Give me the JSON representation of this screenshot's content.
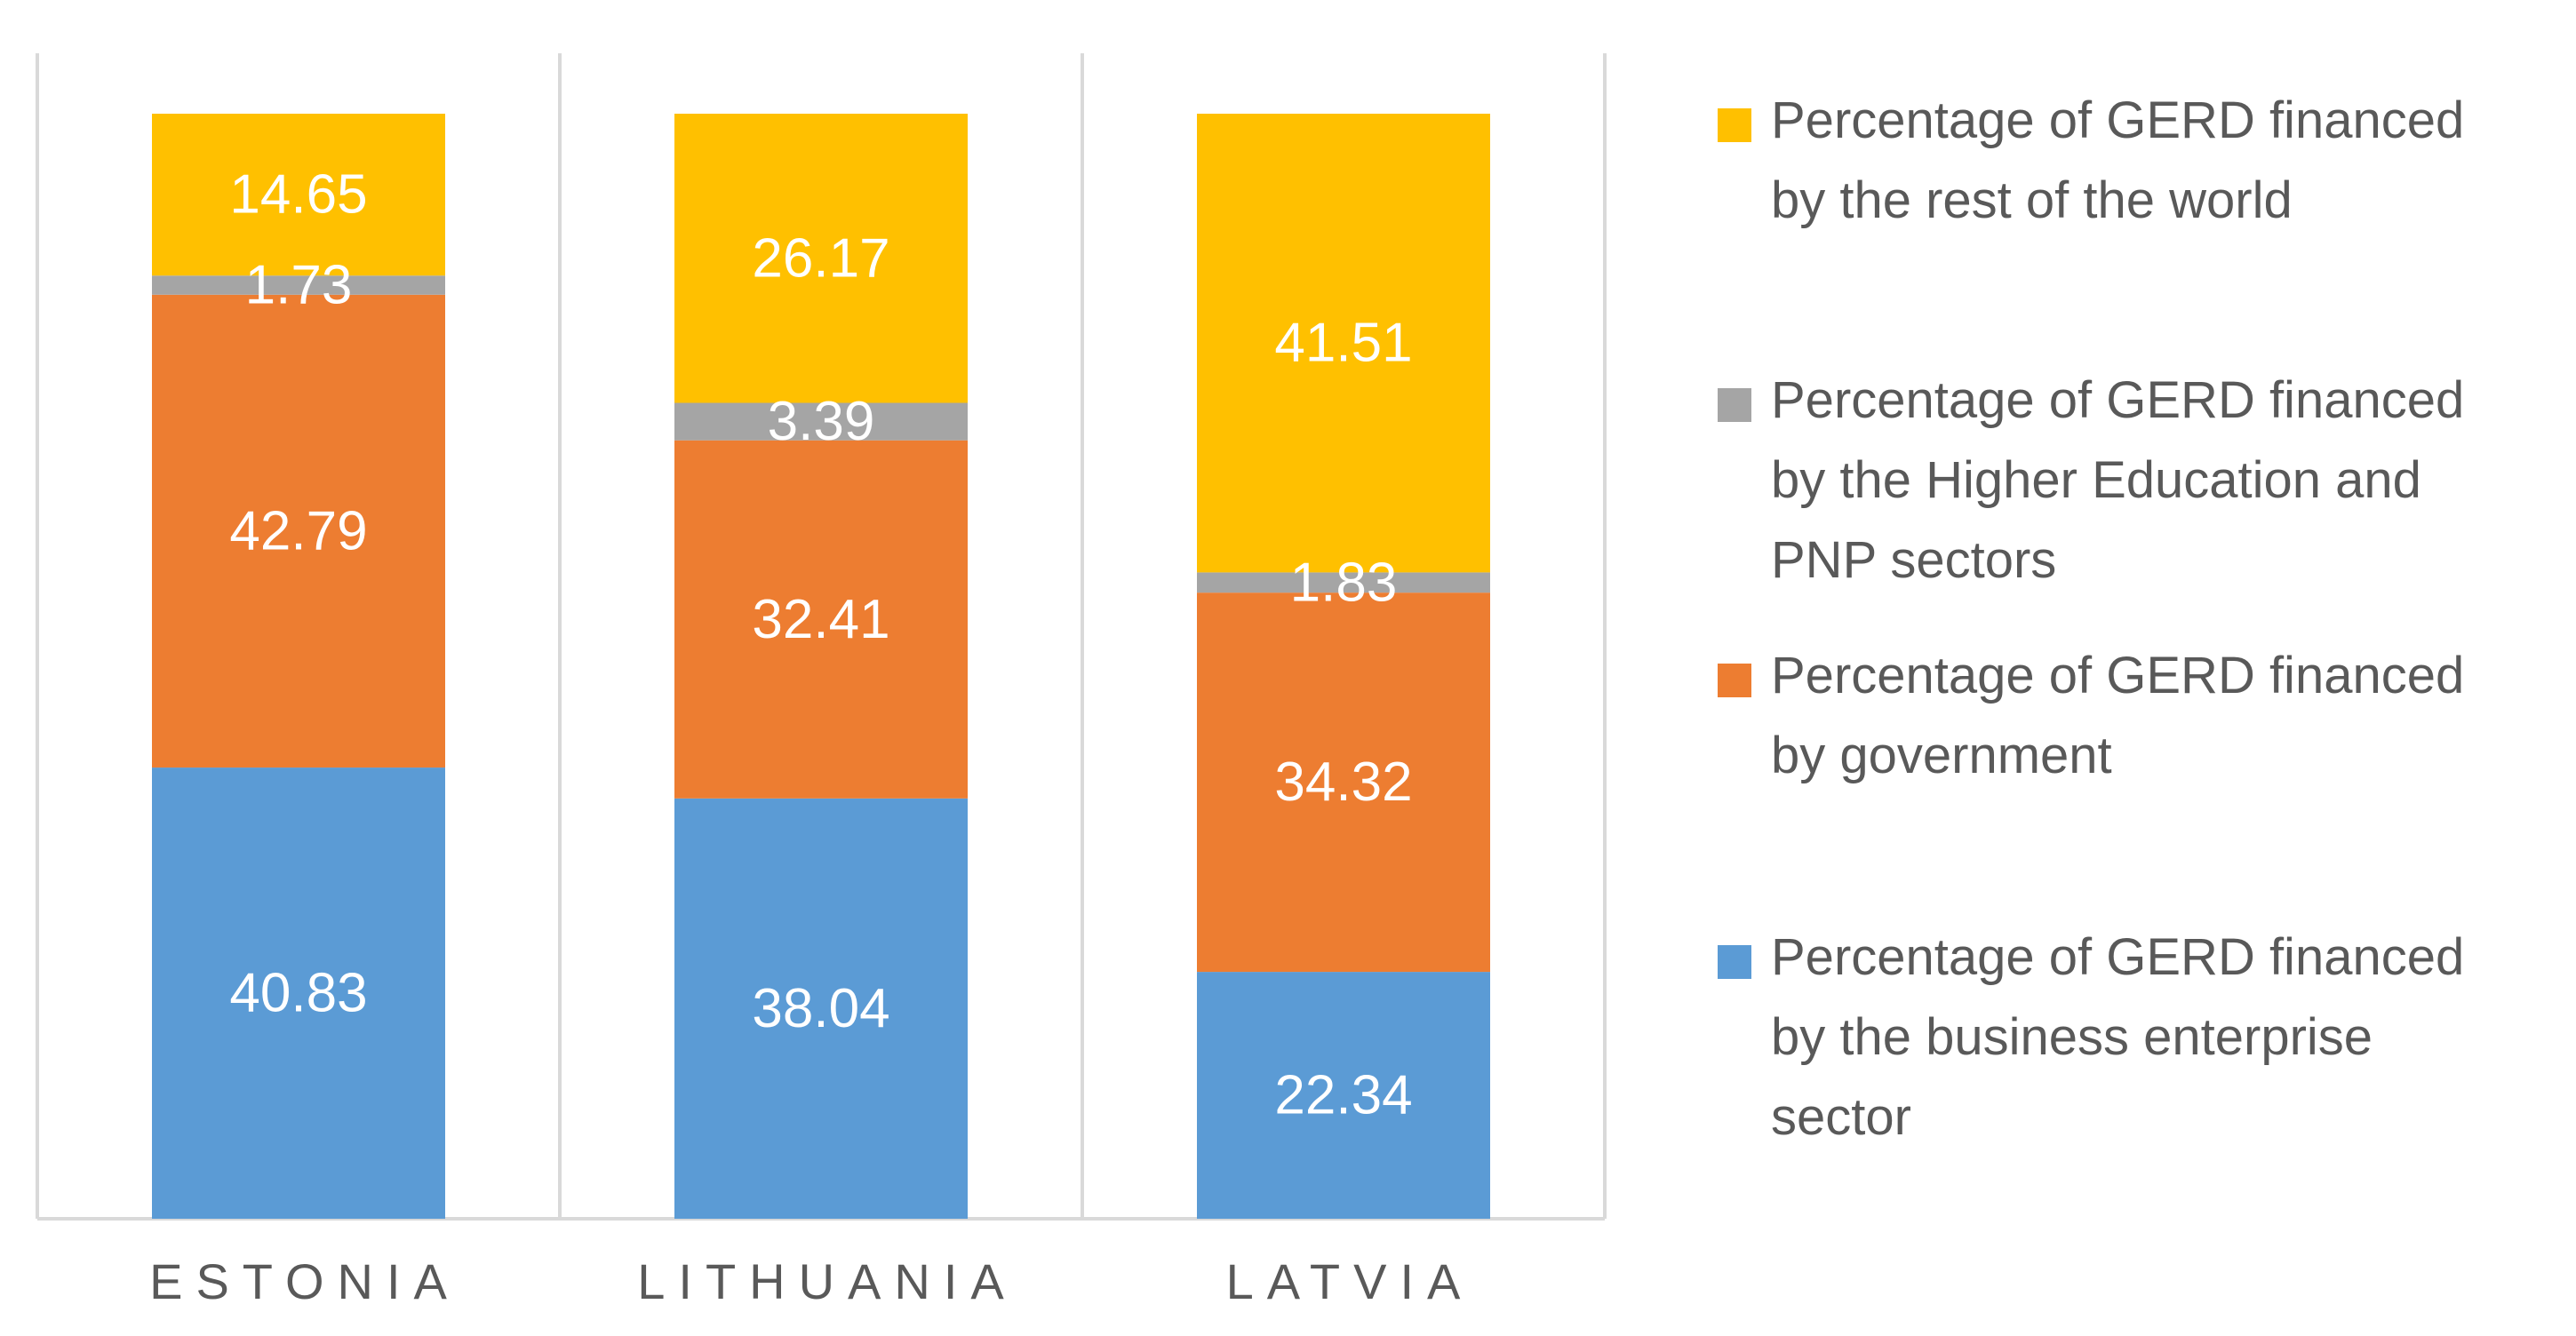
{
  "chart_data": {
    "type": "bar",
    "stacked": true,
    "normalized": true,
    "categories": [
      "ESTONIA",
      "LITHUANIA",
      "LATVIA"
    ],
    "series": [
      {
        "name": "Percentage of GERD financed by the business enterprise sector",
        "legend_lines": [
          "Percentage of GERD financed",
          "by the business enterprise",
          "sector"
        ],
        "color": "#5B9BD5",
        "values": [
          40.83,
          38.04,
          22.34
        ]
      },
      {
        "name": "Percentage of GERD financed by government",
        "legend_lines": [
          "Percentage of GERD financed",
          "by government"
        ],
        "color": "#ED7D31",
        "values": [
          42.79,
          32.41,
          34.32
        ]
      },
      {
        "name": "Percentage of GERD financed by the Higher Education and PNP sectors",
        "legend_lines": [
          "Percentage of GERD financed",
          "by the Higher Education and",
          "PNP sectors"
        ],
        "color": "#A5A5A5",
        "values": [
          1.73,
          3.39,
          1.83
        ]
      },
      {
        "name": "Percentage of GERD financed by the rest of the world",
        "legend_lines": [
          "Percentage of GERD financed",
          "by the rest of the world"
        ],
        "color": "#FFC000",
        "values": [
          14.65,
          26.17,
          41.51
        ]
      }
    ],
    "value_labels": [
      [
        "40.83",
        "42.79",
        "1.73",
        "14.65"
      ],
      [
        "38.04",
        "32.41",
        "3.39",
        "26.17"
      ],
      [
        "22.34",
        "34.32",
        "1.83",
        "41.51"
      ]
    ],
    "title": "",
    "xlabel": "",
    "ylabel": "",
    "legend_position": "right",
    "grid": false,
    "colors": {
      "axis": "#D9D9D9",
      "label_text": "#FFFFFF",
      "category_text": "#595959",
      "legend_text": "#595959"
    }
  }
}
